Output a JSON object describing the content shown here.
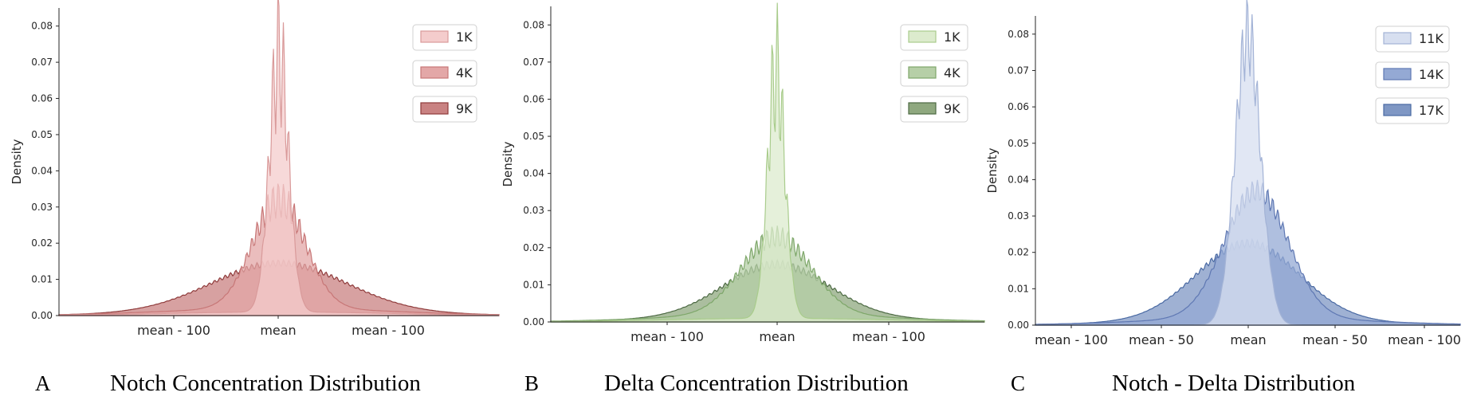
{
  "chart_data": [
    {
      "type": "area",
      "panel_letter": "A",
      "caption": "Notch Concentration Distribution",
      "xlabel": "",
      "ylabel": "Density",
      "x_tick_labels": [
        "mean - 100",
        "mean",
        "mean - 100"
      ],
      "y_ticks": [
        "0.00",
        "0.01",
        "0.02",
        "0.03",
        "0.04",
        "0.05",
        "0.06",
        "0.07",
        "0.08"
      ],
      "ylim": [
        0,
        0.085
      ],
      "grid": false,
      "legend_position": "top-right",
      "series": [
        {
          "name": "1K",
          "color": "#f4cccc",
          "edge": "#d99a9a",
          "peak": 0.071
        },
        {
          "name": "4K",
          "color": "#e3a7a7",
          "edge": "#c77777",
          "peak": 0.03
        },
        {
          "name": "9K",
          "color": "#c98282",
          "edge": "#8f3b3b",
          "peak": 0.013
        }
      ]
    },
    {
      "type": "area",
      "panel_letter": "B",
      "caption": "Delta Concentration Distribution",
      "xlabel": "",
      "ylabel": "Density",
      "x_tick_labels": [
        "mean - 100",
        "mean",
        "mean - 100"
      ],
      "y_ticks": [
        "0.00",
        "0.01",
        "0.02",
        "0.03",
        "0.04",
        "0.05",
        "0.06",
        "0.07",
        "0.08"
      ],
      "ylim": [
        0,
        0.085
      ],
      "grid": false,
      "legend_position": "top-right",
      "series": [
        {
          "name": "1K",
          "color": "#dcebcd",
          "edge": "#a9cc8c",
          "peak": 0.067
        },
        {
          "name": "4K",
          "color": "#b6cfa7",
          "edge": "#7ea76a",
          "peak": 0.021
        },
        {
          "name": "9K",
          "color": "#8fa87f",
          "edge": "#4d6a44",
          "peak": 0.014
        }
      ]
    },
    {
      "type": "area",
      "panel_letter": "C",
      "caption": "Notch - Delta Distribution",
      "xlabel": "",
      "ylabel": "Density",
      "x_tick_labels": [
        "mean - 100",
        "mean - 50",
        "mean",
        "mean - 50",
        "mean - 100"
      ],
      "y_ticks": [
        "0.00",
        "0.01",
        "0.02",
        "0.03",
        "0.04",
        "0.05",
        "0.06",
        "0.07",
        "0.08"
      ],
      "ylim": [
        0,
        0.085
      ],
      "grid": false,
      "legend_position": "top-right",
      "series": [
        {
          "name": "11K",
          "color": "#d7dff0",
          "edge": "#a3b3d6",
          "peak": 0.08
        },
        {
          "name": "14K",
          "color": "#94a9d4",
          "edge": "#5f78b3",
          "peak": 0.035
        },
        {
          "name": "17K",
          "color": "#7f97c4",
          "edge": "#4a6aa3",
          "peak": 0.021
        }
      ]
    }
  ]
}
